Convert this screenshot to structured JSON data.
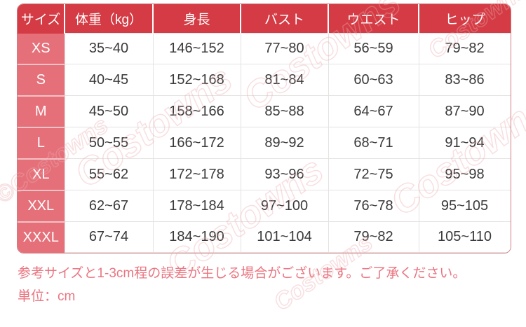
{
  "chart_data": {
    "type": "table",
    "title": "",
    "columns": [
      "サイズ",
      "体重（kg）",
      "身長",
      "バスト",
      "ウエスト",
      "ヒップ"
    ],
    "rows": [
      [
        "XS",
        "35~40",
        "146~152",
        "77~80",
        "56~59",
        "79~82"
      ],
      [
        "S",
        "40~45",
        "152~168",
        "81~84",
        "60~63",
        "83~86"
      ],
      [
        "M",
        "45~50",
        "158~166",
        "85~88",
        "64~67",
        "87~90"
      ],
      [
        "L",
        "50~55",
        "166~172",
        "89~92",
        "68~71",
        "91~94"
      ],
      [
        "XL",
        "55~62",
        "172~178",
        "93~96",
        "72~75",
        "95~98"
      ],
      [
        "XXL",
        "62~67",
        "178~184",
        "97~100",
        "76~78",
        "95~105"
      ],
      [
        "XXXL",
        "67~74",
        "184~190",
        "101~104",
        "79~82",
        "105~110"
      ]
    ]
  },
  "notes": {
    "line1": "参考サイズと1-3cm程の誤差が生じる場合がございます。ご了承ください。",
    "line2": "単位：cm"
  },
  "watermark": {
    "text": "Costowns",
    "copyright": "©Costowns"
  },
  "colors": {
    "header_bg": "#d43b44",
    "size_column_bg": "#e5707a",
    "cell_border": "#e5e2e2",
    "note_text": "#ea7580"
  }
}
